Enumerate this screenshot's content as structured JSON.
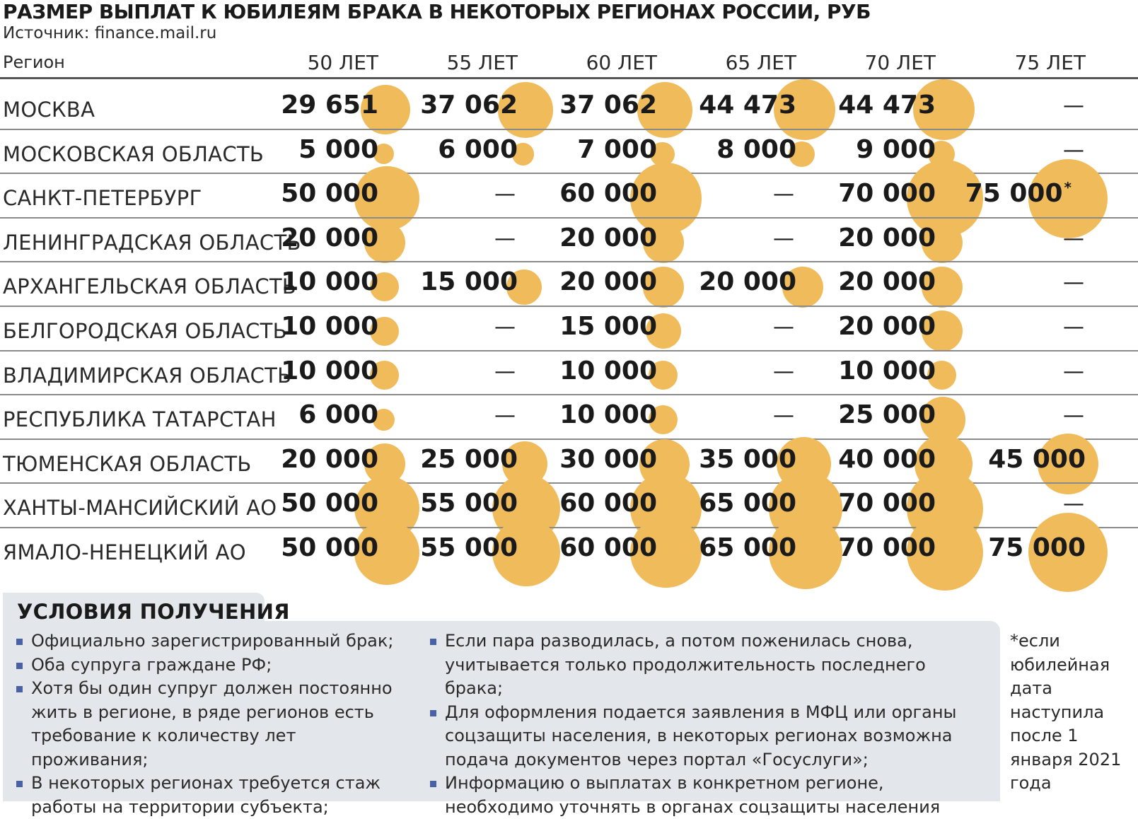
{
  "title": "РАЗМЕР ВЫПЛАТ К ЮБИЛЕЯМ БРАКА В НЕКОТОРЫХ РЕГИОНАХ РОССИИ, РУБ",
  "source": "Источник: finance.mail.ru",
  "colors": {
    "bubble": "#f0bb5b",
    "bullet": "#4a62a3",
    "panel": "#e3e6ea"
  },
  "chart_data": {
    "type": "table",
    "row_header": "Регион",
    "columns": [
      "50 ЛЕТ",
      "55 ЛЕТ",
      "60 ЛЕТ",
      "65 ЛЕТ",
      "70 ЛЕТ",
      "75 ЛЕТ"
    ],
    "rows": [
      {
        "region": "МОСКВА",
        "values": [
          29651,
          37062,
          37062,
          44473,
          44473,
          null
        ]
      },
      {
        "region": "МОСКОВСКАЯ ОБЛАСТЬ",
        "values": [
          5000,
          6000,
          7000,
          8000,
          9000,
          null
        ]
      },
      {
        "region": "САНКТ-ПЕТЕРБУРГ",
        "values": [
          50000,
          null,
          60000,
          null,
          70000,
          75000
        ],
        "footnote_col": 5
      },
      {
        "region": "ЛЕНИНГРАДСКАЯ ОБЛАСТЬ",
        "values": [
          20000,
          null,
          20000,
          null,
          20000,
          null
        ]
      },
      {
        "region": "АРХАНГЕЛЬСКАЯ ОБЛАСТЬ",
        "values": [
          10000,
          15000,
          20000,
          20000,
          20000,
          null
        ]
      },
      {
        "region": "БЕЛГОРОДСКАЯ ОБЛАСТЬ",
        "values": [
          10000,
          null,
          15000,
          null,
          20000,
          null
        ]
      },
      {
        "region": "ВЛАДИМИРСКАЯ ОБЛАСТЬ",
        "values": [
          10000,
          null,
          10000,
          null,
          10000,
          null
        ]
      },
      {
        "region": "РЕСПУБЛИКА ТАТАРСТАН",
        "values": [
          6000,
          null,
          10000,
          null,
          25000,
          null
        ]
      },
      {
        "region": "ТЮМЕНСКАЯ ОБЛАСТЬ",
        "values": [
          20000,
          25000,
          30000,
          35000,
          40000,
          45000
        ]
      },
      {
        "region": "ХАНТЫ-МАНСИЙСКИЙ АО",
        "values": [
          50000,
          55000,
          60000,
          65000,
          70000,
          null
        ]
      },
      {
        "region": "ЯМАЛО-НЕНЕЦКИЙ АО",
        "values": [
          50000,
          55000,
          60000,
          65000,
          70000,
          75000
        ]
      }
    ],
    "empty_symbol": "—",
    "footnote_mark": "*"
  },
  "conditions": {
    "title": "УСЛОВИЯ ПОЛУЧЕНИЯ",
    "left": [
      "Официально зарегистрированный брак;",
      "Оба супруга граждане РФ;",
      "Хотя бы один супруг должен постоянно жить в регионе, в ряде регионов есть требование к количеству лет проживания;",
      "В некоторых регионах требуется стаж работы на территории субъекта;"
    ],
    "right": [
      "Если пара разводилась, а потом поженилась снова, учитывается только продолжительность последнего брака;",
      "Для оформления подается заявления в МФЦ или органы соцзащиты населения, в некоторых регионах возможна подача документов через портал «Госуслуги»;",
      "Информацию о выплатах в конкретном регионе, необходимо уточнять в органах соцзащиты населения"
    ]
  },
  "footnote": "*если юбилейная дата наступила после 1 января 2021 года"
}
